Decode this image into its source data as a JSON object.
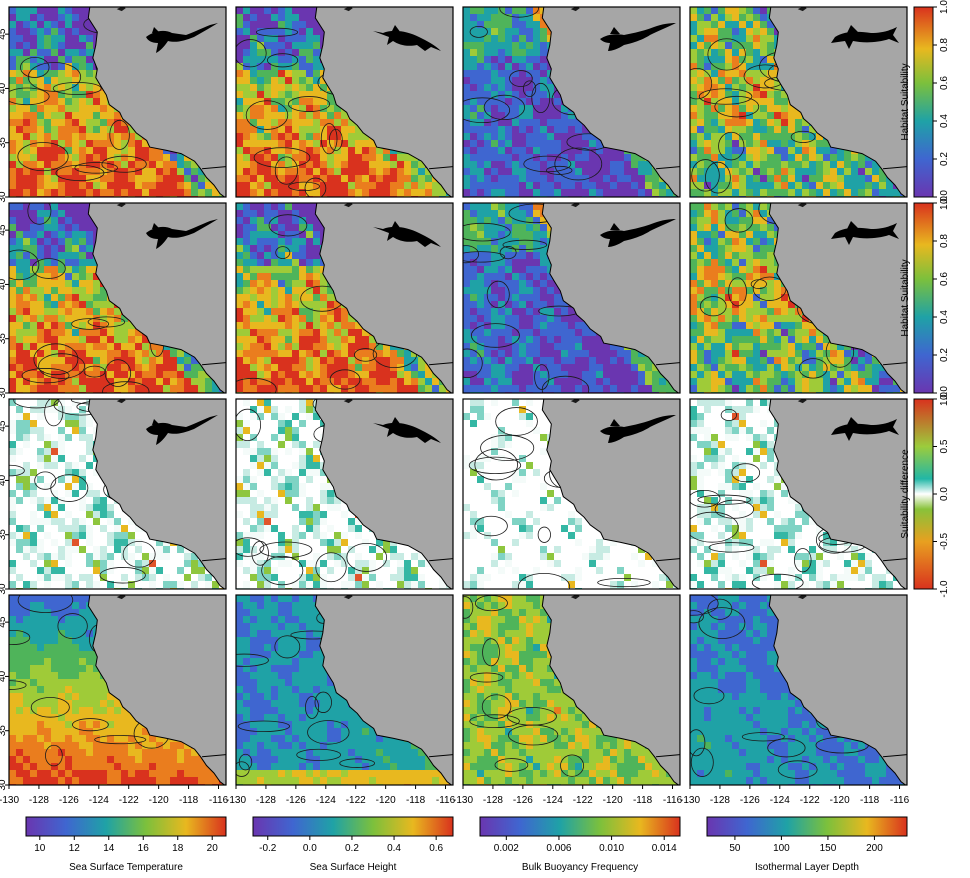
{
  "figure": {
    "latitude_ticks": [
      "30",
      "35",
      "40",
      "45"
    ],
    "longitude_ticks": [
      "-130",
      "-128",
      "-126",
      "-124",
      "-122",
      "-120",
      "-118",
      "-116"
    ],
    "species_icons": [
      "swordfish-silhouette",
      "mako-shark-silhouette",
      "thresher-shark-silhouette",
      "blue-shark-silhouette"
    ],
    "colors": {
      "land": "#a6a6a6",
      "border": "#000000"
    }
  },
  "chart_data": [
    {
      "type": "heatmap",
      "row": 1,
      "panels": 4,
      "colorbar": {
        "label": "Habitat Suitability",
        "ticks": [
          "0.0",
          "0.2",
          "0.4",
          "0.6",
          "0.8",
          "1.0"
        ],
        "range": [
          0,
          1
        ]
      },
      "xlim": [
        -130,
        -115.5
      ],
      "ylim": [
        30,
        47.5
      ]
    },
    {
      "type": "heatmap",
      "row": 2,
      "panels": 4,
      "colorbar": {
        "label": "Habitat Suitability",
        "ticks": [
          "0.0",
          "0.2",
          "0.4",
          "0.6",
          "0.8",
          "1.0"
        ],
        "range": [
          0,
          1
        ]
      },
      "xlim": [
        -130,
        -115.5
      ],
      "ylim": [
        30,
        47.5
      ]
    },
    {
      "type": "heatmap",
      "row": 3,
      "panels": 4,
      "colorbar": {
        "label": "Suitability difference",
        "ticks": [
          "-1.0",
          "-0.5",
          "0.0",
          "0.5",
          "1.0"
        ],
        "range": [
          -1,
          1
        ]
      },
      "xlim": [
        -130,
        -115.5
      ],
      "ylim": [
        30,
        47.5
      ]
    },
    {
      "type": "heatmap",
      "row": 4,
      "panels": 4,
      "xlim": [
        -130,
        -115.5
      ],
      "ylim": [
        30,
        47.5
      ],
      "colorbars": [
        {
          "label": "Sea Surface Temperature",
          "ticks": [
            "10",
            "12",
            "14",
            "16",
            "18",
            "20"
          ],
          "range": [
            9.2,
            20.8
          ]
        },
        {
          "label": "Sea Surface Height",
          "ticks": [
            "-0.2",
            "0.0",
            "0.2",
            "0.4",
            "0.6"
          ],
          "range": [
            -0.27,
            0.68
          ]
        },
        {
          "label": "Bulk Buoyancy Frequency",
          "ticks": [
            "0.002",
            "0.006",
            "0.010",
            "0.014"
          ],
          "range": [
            0.0,
            0.0152
          ]
        },
        {
          "label": "Isothermal Layer Depth",
          "ticks": [
            "50",
            "100",
            "150",
            "200"
          ],
          "range": [
            20,
            235
          ]
        }
      ]
    }
  ]
}
